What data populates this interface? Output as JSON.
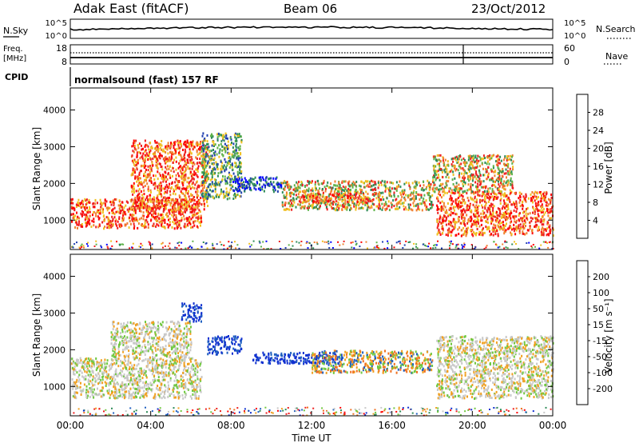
{
  "header": {
    "station": "Adak East (fitACF)",
    "beam": "Beam 06",
    "date": "23/Oct/2012"
  },
  "summary_panels": {
    "nsky_label": "N.Sky",
    "nsky_ticks": [
      "10^5",
      "10^0"
    ],
    "nsky_right_ticks": [
      "10^5",
      "10^0"
    ],
    "nsearch_label": "N.Search",
    "freq_label_line1": "Freq.",
    "freq_label_line2": "[MHz]",
    "freq_ticks": [
      "18",
      "8"
    ],
    "nave_ticks": [
      "60",
      "0"
    ],
    "nave_label": "Nave",
    "cpid_label": "CPID",
    "cpid_value": "normalsound (fast) 157 RF"
  },
  "chart_data": [
    {
      "type": "heatmap",
      "name": "power-panel",
      "ylabel": "Slant Range [km]",
      "xlabel": "Time UT",
      "xlim": [
        0,
        24
      ],
      "ylim": [
        200,
        4600
      ],
      "yticks": [
        1000,
        2000,
        3000,
        4000
      ],
      "xticks": [
        "00:00",
        "04:00",
        "08:00",
        "12:00",
        "16:00",
        "20:00",
        "00:00"
      ],
      "colorbar": {
        "label": "Power [dB]",
        "ticks": [
          "4",
          "8",
          "12",
          "16",
          "20",
          "24",
          "28"
        ],
        "colors": [
          "#0000ff",
          "#2040b0",
          "#2e8b57",
          "#5fb34a",
          "#f0c020",
          "#f08030",
          "#ee2020",
          "#ff0000"
        ]
      },
      "regions": [
        {
          "t0": 0.0,
          "t1": 6.5,
          "r0": 800,
          "r1": 1600,
          "level": "high"
        },
        {
          "t0": 3.0,
          "t1": 6.8,
          "r0": 1300,
          "r1": 3200,
          "level": "high"
        },
        {
          "t0": 6.5,
          "t1": 8.5,
          "r0": 1600,
          "r1": 3400,
          "level": "mixed"
        },
        {
          "t0": 8.0,
          "t1": 10.5,
          "r0": 1800,
          "r1": 2200,
          "level": "low"
        },
        {
          "t0": 10.5,
          "t1": 18.0,
          "r0": 1300,
          "r1": 2100,
          "level": "medium"
        },
        {
          "t0": 11.5,
          "t1": 15.5,
          "r0": 1500,
          "r1": 1750,
          "level": "high"
        },
        {
          "t0": 18.2,
          "t1": 24.0,
          "r0": 600,
          "r1": 1800,
          "level": "high"
        },
        {
          "t0": 18.0,
          "t1": 22.0,
          "r0": 1800,
          "r1": 2800,
          "level": "medium"
        }
      ]
    },
    {
      "type": "heatmap",
      "name": "velocity-panel",
      "ylabel": "Slant Range [km]",
      "xlabel": "Time UT",
      "xlim": [
        0,
        24
      ],
      "ylim": [
        200,
        4600
      ],
      "yticks": [
        1000,
        2000,
        3000,
        4000
      ],
      "xticks": [
        "00:00",
        "04:00",
        "08:00",
        "12:00",
        "16:00",
        "20:00",
        "00:00"
      ],
      "colorbar": {
        "label": "Velocity [m s⁻¹]",
        "ticks": [
          "200",
          "100",
          "50",
          "15",
          "-15",
          "-50",
          "-100",
          "-200"
        ],
        "colors": [
          "#1030d0",
          "#2060c0",
          "#2e8b57",
          "#70c840",
          "#c8c8c8",
          "#f0a020",
          "#f07020",
          "#ee2020",
          "#ff0000"
        ]
      },
      "regions": [
        {
          "t0": 0.0,
          "t1": 6.5,
          "r0": 700,
          "r1": 1800,
          "level": "ground"
        },
        {
          "t0": 2.0,
          "t1": 6.0,
          "r0": 1800,
          "r1": 2800,
          "level": "ground"
        },
        {
          "t0": 5.5,
          "t1": 6.5,
          "r0": 2800,
          "r1": 3300,
          "level": "toward"
        },
        {
          "t0": 6.8,
          "t1": 8.5,
          "r0": 1900,
          "r1": 2400,
          "level": "toward"
        },
        {
          "t0": 9.0,
          "t1": 13.5,
          "r0": 1650,
          "r1": 1950,
          "level": "toward"
        },
        {
          "t0": 12.0,
          "t1": 18.0,
          "r0": 1400,
          "r1": 2000,
          "level": "away"
        },
        {
          "t0": 18.2,
          "t1": 24.0,
          "r0": 700,
          "r1": 2400,
          "level": "ground"
        }
      ]
    }
  ]
}
